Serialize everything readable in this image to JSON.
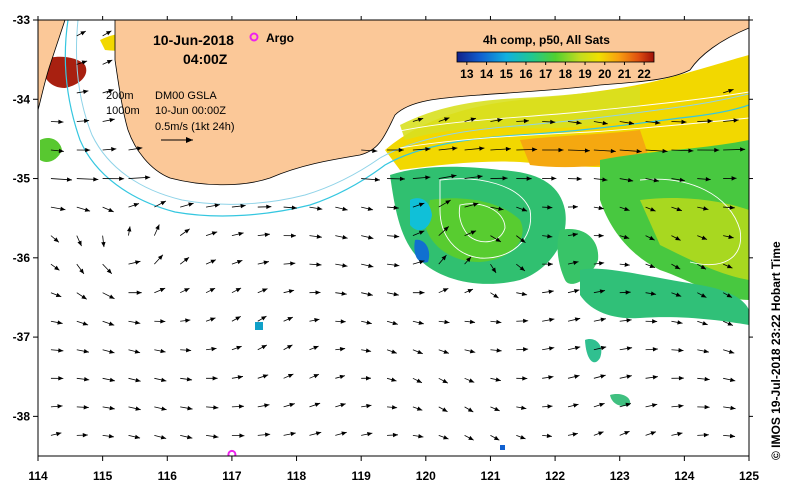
{
  "header": {
    "date": "10-Jun-2018",
    "time": "04:00Z",
    "argo_label": "Argo"
  },
  "legend": {
    "depth_200": "200m",
    "depth_1000": "1000m",
    "gsla_label": "DM00 GSLA",
    "gsla_time": "10-Jun 00:00Z",
    "velocity_scale": "0.5m/s (1kt 24h)"
  },
  "colorbar": {
    "title": "4h comp, p50, All Sats",
    "ticks": [
      "13",
      "14",
      "15",
      "16",
      "17",
      "18",
      "19",
      "20",
      "21",
      "22"
    ],
    "min": 12.5,
    "max": 22.5
  },
  "credit": "© IMOS 19-Jul-2018 23:22 Hobart Time",
  "axes": {
    "x_ticks": [
      "114",
      "115",
      "116",
      "117",
      "118",
      "119",
      "120",
      "121",
      "122",
      "123",
      "124",
      "125"
    ],
    "y_ticks": [
      "-33",
      "-34",
      "-35",
      "-36",
      "-37",
      "-38"
    ],
    "x_range": [
      114,
      125
    ],
    "y_range": [
      -38.5,
      -33
    ]
  },
  "argo_float": {
    "lon": 117.0,
    "lat": -38.48
  },
  "colors": {
    "land": "#fbc898",
    "argo": "#ee22ee",
    "isobath_200": "#8fd3e8",
    "isobath_1000": "#35c7e0",
    "contour": "#ffffff"
  }
}
